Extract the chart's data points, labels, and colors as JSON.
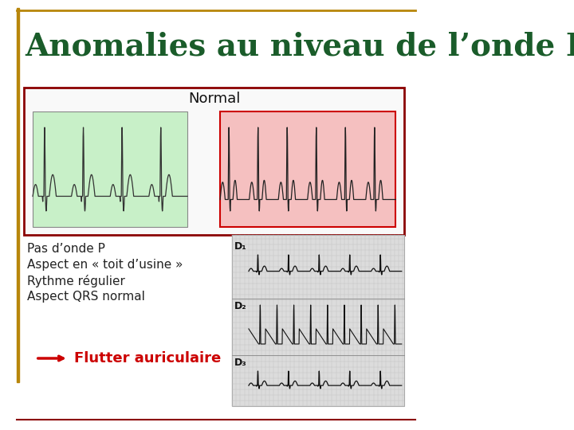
{
  "title": "Anomalies au niveau de l’onde P",
  "title_color": "#1a5c2a",
  "title_fontsize": 28,
  "border_top_color": "#b8860b",
  "border_bottom_color": "#8b0000",
  "background_color": "#ffffff",
  "normal_label": "Normal",
  "ecg_left_bg": "#c8f0c8",
  "ecg_right_bg": "#f5c0c0",
  "ecg_left_border": "#888888",
  "ecg_right_border": "#cc0000",
  "bullet_lines": [
    "Pas d’onde P",
    "Aspect en « toit d’usine »",
    "Rythme régulier",
    "Aspect QRS normal"
  ],
  "bullet_fontsize": 11,
  "bullet_color": "#222222",
  "arrow_color": "#cc0000",
  "flutter_text": "Flutter auriculaire",
  "flutter_color": "#cc0000",
  "flutter_fontsize": 13,
  "ecg_image_right_labels": [
    "D₁",
    "D₂",
    "D₃"
  ],
  "ecg_image_right_label_color": "#111111",
  "slide_border_color": "#8b0000",
  "left_bar_color": "#b8860b"
}
